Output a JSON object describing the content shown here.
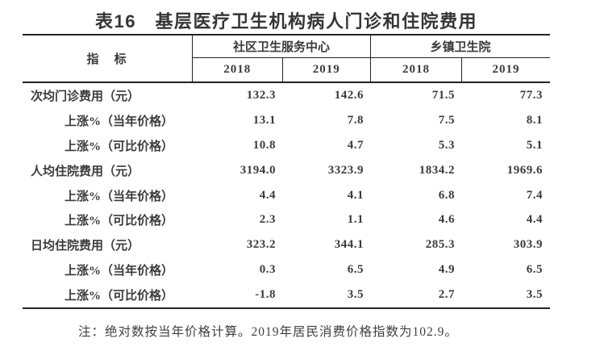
{
  "title": "表16　基层医疗卫生机构病人门诊和住院费用",
  "table": {
    "indicator_header": "指　标",
    "groups": [
      {
        "label": "社区卫生服务中心",
        "years": [
          "2018",
          "2019"
        ]
      },
      {
        "label": "乡镇卫生院",
        "years": [
          "2018",
          "2019"
        ]
      }
    ],
    "rows": [
      {
        "label": "次均门诊费用（元）",
        "values": [
          "132.3",
          "142.6",
          "71.5",
          "77.3"
        ]
      },
      {
        "label": "上涨%（当年价格）",
        "values": [
          "13.1",
          "7.8",
          "7.5",
          "8.1"
        ]
      },
      {
        "label": "上涨%（可比价格）",
        "values": [
          "10.8",
          "4.7",
          "5.3",
          "5.1"
        ]
      },
      {
        "label": "人均住院费用（元）",
        "values": [
          "3194.0",
          "3323.9",
          "1834.2",
          "1969.6"
        ]
      },
      {
        "label": "上涨%（当年价格）",
        "values": [
          "4.4",
          "4.1",
          "6.8",
          "7.4"
        ]
      },
      {
        "label": "上涨%（可比价格）",
        "values": [
          "2.3",
          "1.1",
          "4.6",
          "4.4"
        ]
      },
      {
        "label": "日均住院费用（元）",
        "values": [
          "323.2",
          "344.1",
          "285.3",
          "303.9"
        ]
      },
      {
        "label": "上涨%（当年价格）",
        "values": [
          "0.3",
          "6.5",
          "4.9",
          "6.5"
        ]
      },
      {
        "label": "上涨%（可比价格）",
        "values": [
          "-1.8",
          "3.5",
          "2.7",
          "3.5"
        ]
      }
    ]
  },
  "note": "注：绝对数按当年价格计算。2019年居民消费价格指数为102.9。",
  "colors": {
    "text": "#3b3b3b",
    "border": "#222222",
    "background": "#ffffff"
  }
}
